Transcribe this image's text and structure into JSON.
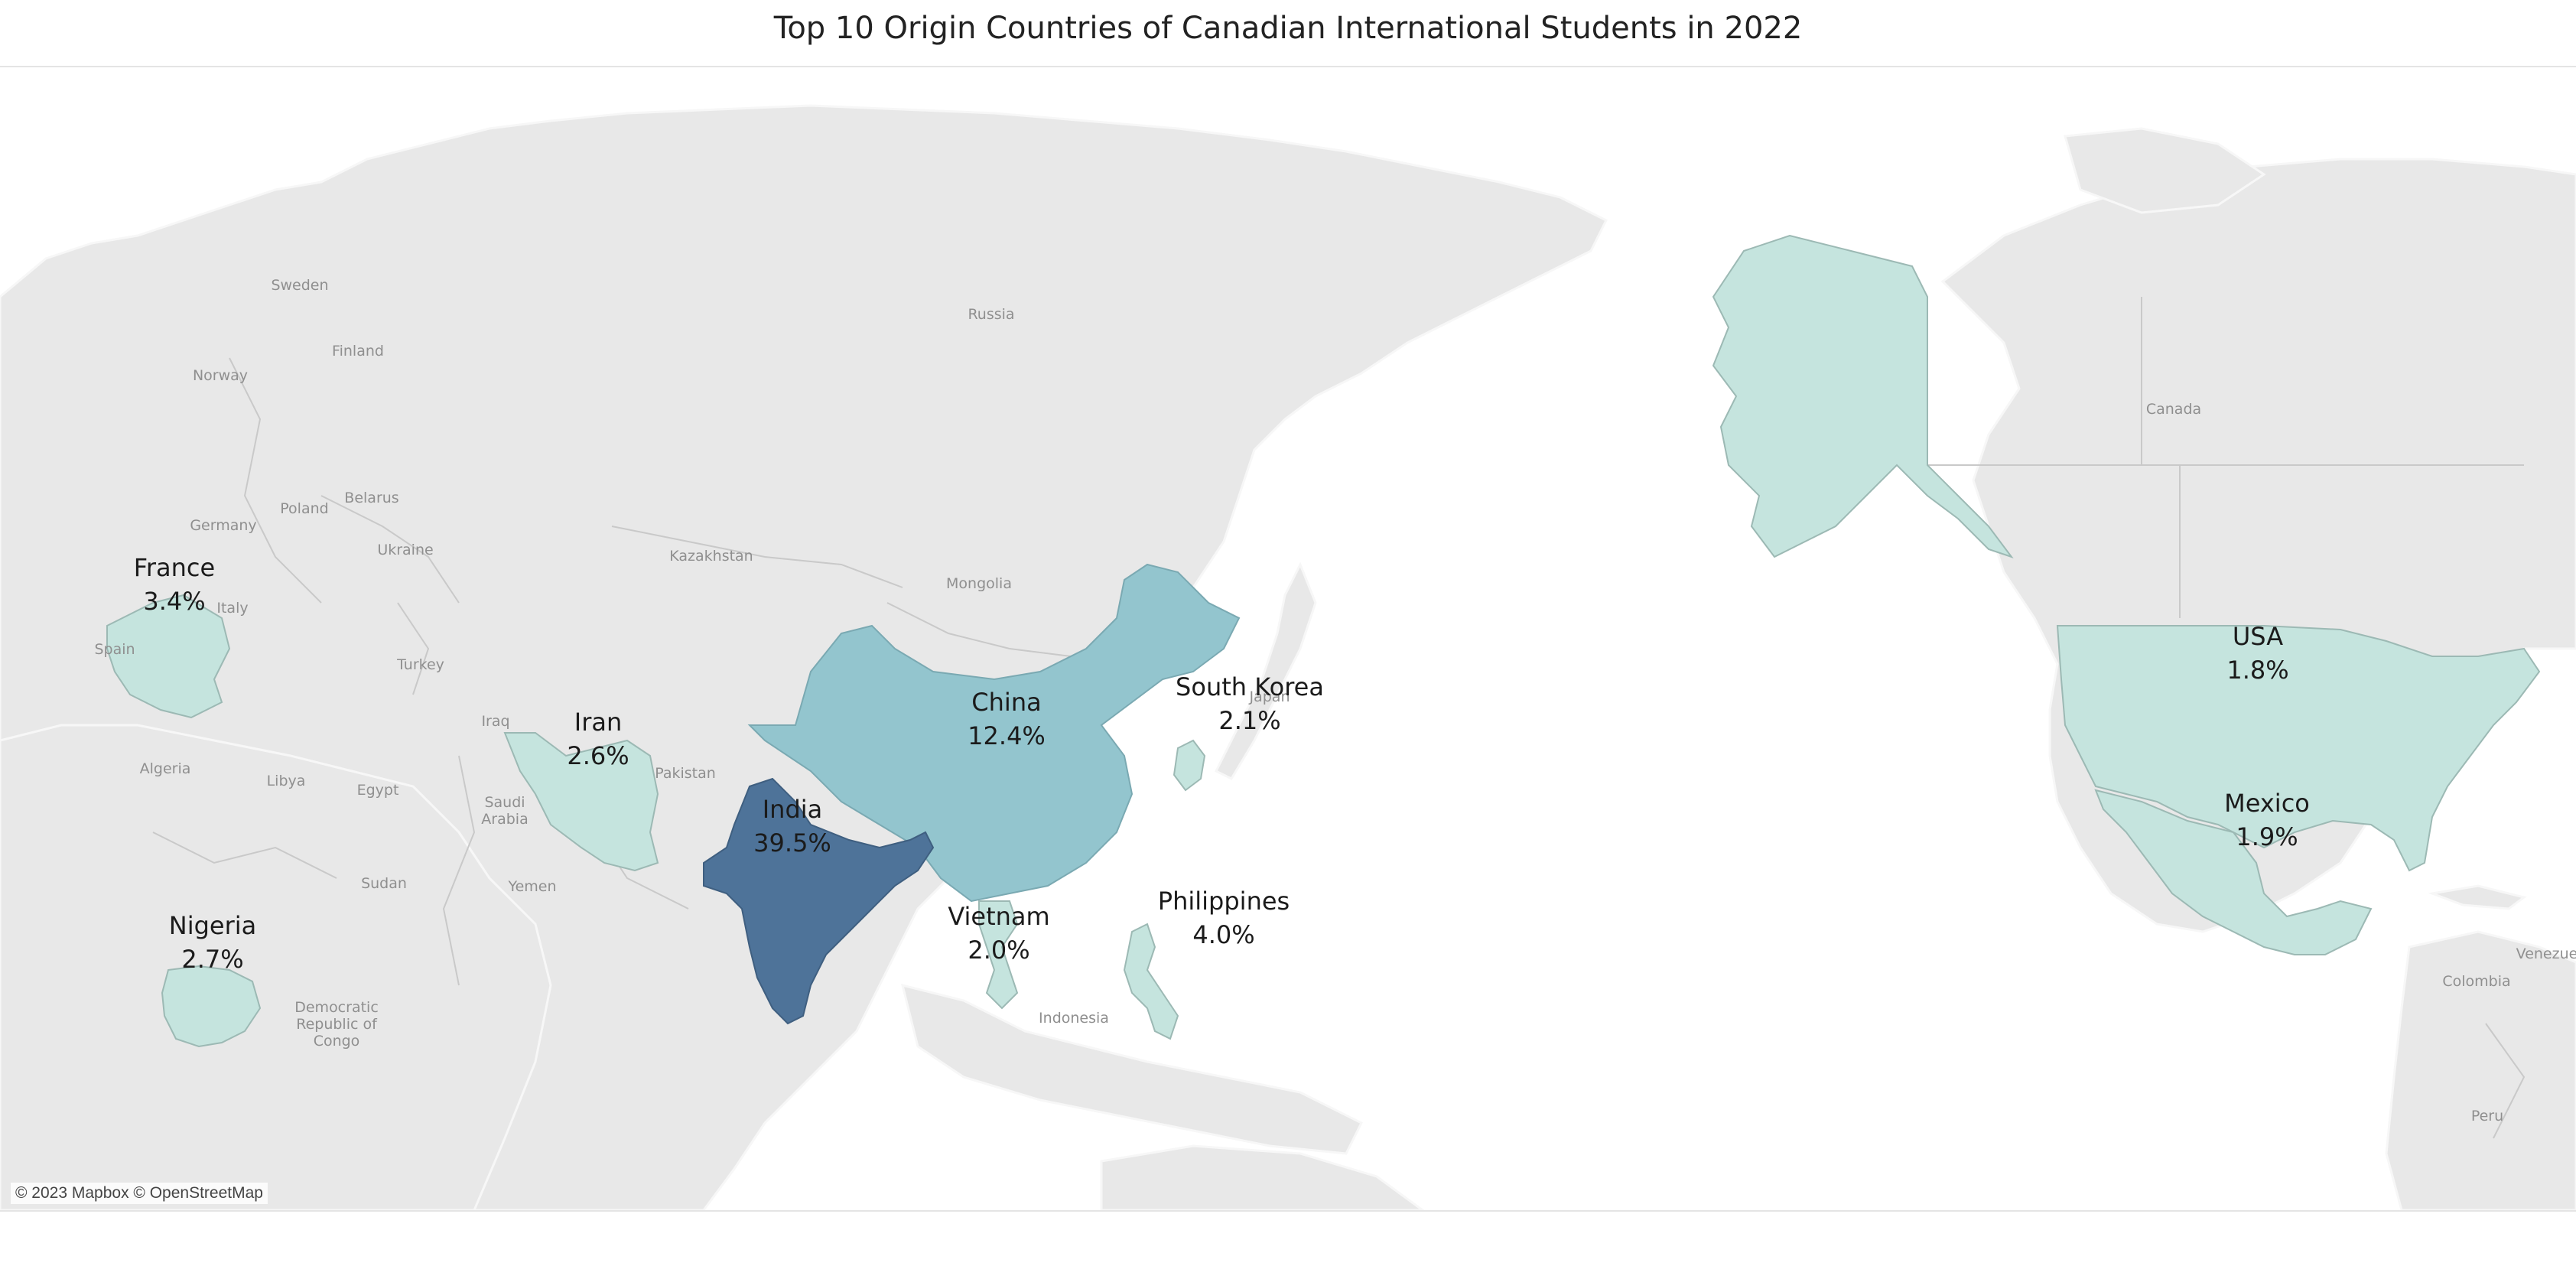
{
  "title": "Top 10 Origin Countries of Canadian International Students in 2022",
  "attribution": "© 2023 Mapbox © OpenStreetMap",
  "colors": {
    "water": "#ffffff",
    "land": "#e8e8e8",
    "india": "#4e7399",
    "china": "#93c5ce",
    "low": "#c5e4de"
  },
  "background_labels": {
    "russia": "Russia",
    "sweden": "Sweden",
    "finland": "Finland",
    "norway": "Norway",
    "germany": "Germany",
    "poland": "Poland",
    "belarus": "Belarus",
    "ukraine": "Ukraine",
    "italy": "Italy",
    "spain": "Spain",
    "turkey": "Turkey",
    "kazakhstan": "Kazakhstan",
    "mongolia": "Mongolia",
    "iraq": "Iraq",
    "pakistan": "Pakistan",
    "saudi_arabia": "Saudi Arabia",
    "yemen": "Yemen",
    "egypt": "Egypt",
    "libya": "Libya",
    "algeria": "Algeria",
    "sudan": "Sudan",
    "drc": "Democratic Republic of Congo",
    "indonesia": "Indonesia",
    "japan": "Japan",
    "canada": "Canada",
    "colombia": "Colombia",
    "venezuela": "Venezue",
    "peru": "Peru"
  },
  "map_data": {
    "type": "choropleth",
    "metric": "share of international students",
    "countries": [
      {
        "name": "India",
        "value": "39.5%"
      },
      {
        "name": "China",
        "value": "12.4%"
      },
      {
        "name": "Philippines",
        "value": "4.0%"
      },
      {
        "name": "France",
        "value": "3.4%"
      },
      {
        "name": "Nigeria",
        "value": "2.7%"
      },
      {
        "name": "Iran",
        "value": "2.6%"
      },
      {
        "name": "South Korea",
        "value": "2.1%"
      },
      {
        "name": "Vietnam",
        "value": "2.0%"
      },
      {
        "name": "Mexico",
        "value": "1.9%"
      },
      {
        "name": "USA",
        "value": "1.8%"
      }
    ]
  }
}
